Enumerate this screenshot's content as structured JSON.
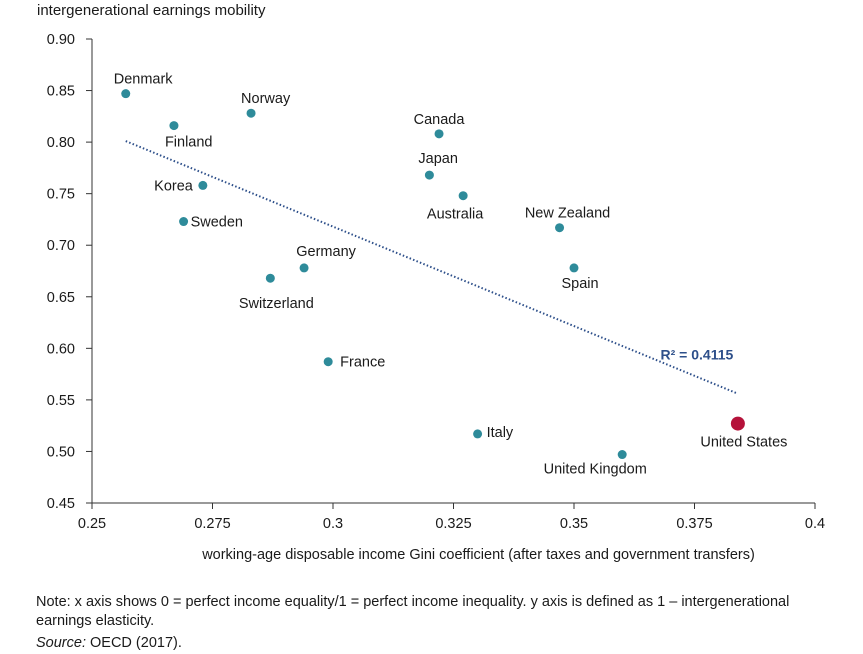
{
  "chart_data": {
    "type": "scatter",
    "ylabel": "intergenerational earnings mobility",
    "xlabel": "working-age disposable income Gini coefficient (after taxes and government transfers)",
    "xlim": [
      0.25,
      0.4
    ],
    "ylim": [
      0.45,
      0.9
    ],
    "xticks": [
      0.25,
      0.275,
      0.3,
      0.325,
      0.35,
      0.375,
      0.4
    ],
    "xtick_labels": [
      "0.25",
      "0.275",
      "0.3",
      "0.325",
      "0.35",
      "0.375",
      "0.4"
    ],
    "yticks": [
      0.45,
      0.5,
      0.55,
      0.6,
      0.65,
      0.7,
      0.75,
      0.8,
      0.85,
      0.9
    ],
    "ytick_labels": [
      "0.45",
      "0.50",
      "0.55",
      "0.60",
      "0.65",
      "0.70",
      "0.75",
      "0.80",
      "0.85",
      "0.90"
    ],
    "grid": false,
    "colors": {
      "point": "#2e8b9a",
      "highlight": "#b5123a",
      "trend": "#2d4f8a",
      "axis": "#333333"
    },
    "points": [
      {
        "label": "Denmark",
        "x": 0.257,
        "y": 0.847
      },
      {
        "label": "Finland",
        "x": 0.267,
        "y": 0.816
      },
      {
        "label": "Norway",
        "x": 0.283,
        "y": 0.828
      },
      {
        "label": "Korea",
        "x": 0.273,
        "y": 0.758
      },
      {
        "label": "Sweden",
        "x": 0.269,
        "y": 0.723
      },
      {
        "label": "Canada",
        "x": 0.322,
        "y": 0.808
      },
      {
        "label": "Japan",
        "x": 0.32,
        "y": 0.768
      },
      {
        "label": "Australia",
        "x": 0.327,
        "y": 0.748
      },
      {
        "label": "New Zealand",
        "x": 0.347,
        "y": 0.717
      },
      {
        "label": "Germany",
        "x": 0.294,
        "y": 0.678
      },
      {
        "label": "Switzerland",
        "x": 0.287,
        "y": 0.668
      },
      {
        "label": "Spain",
        "x": 0.35,
        "y": 0.678
      },
      {
        "label": "France",
        "x": 0.299,
        "y": 0.587
      },
      {
        "label": "Italy",
        "x": 0.33,
        "y": 0.517
      },
      {
        "label": "United Kingdom",
        "x": 0.36,
        "y": 0.497
      },
      {
        "label": "United States",
        "x": 0.384,
        "y": 0.527,
        "highlight": true
      }
    ],
    "trendline": {
      "x": [
        0.257,
        0.384
      ],
      "y": [
        0.801,
        0.556
      ]
    },
    "annotation": "R² = 0.4115"
  },
  "note": "Note: x axis shows 0 = perfect income equality/1 = perfect income inequality. y axis is defined as 1 – intergenerational earnings elasticity.",
  "source_label": "Source:",
  "source_text": " OECD (2017)."
}
